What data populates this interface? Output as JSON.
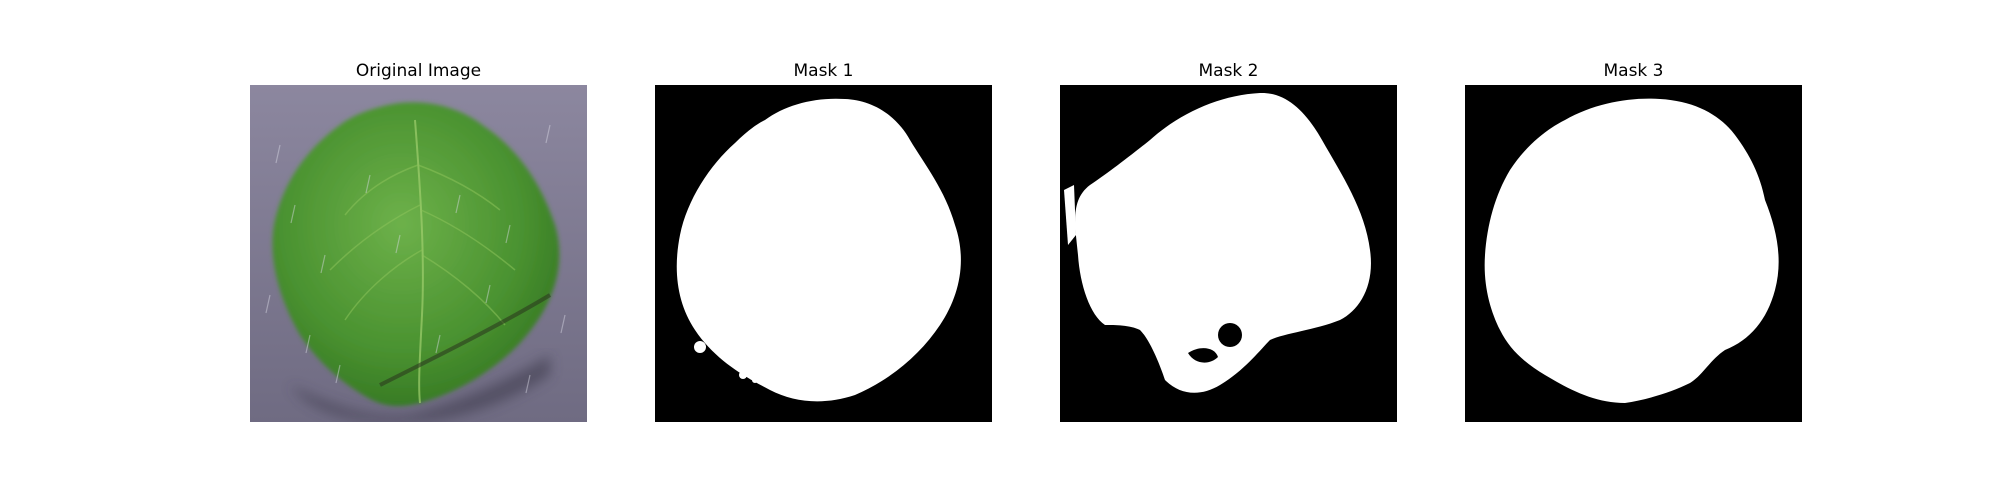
{
  "figure": {
    "panels": [
      {
        "title": "Original Image",
        "kind": "photo",
        "subject": "green-leaf-on-gray-background"
      },
      {
        "title": "Mask 1",
        "kind": "mask"
      },
      {
        "title": "Mask 2",
        "kind": "mask"
      },
      {
        "title": "Mask 3",
        "kind": "mask"
      }
    ]
  },
  "colors": {
    "background": "#ffffff",
    "mask_foreground": "#ffffff",
    "mask_background": "#000000",
    "leaf_green": "#4f9a35",
    "ground_gray": "#7c7890"
  }
}
